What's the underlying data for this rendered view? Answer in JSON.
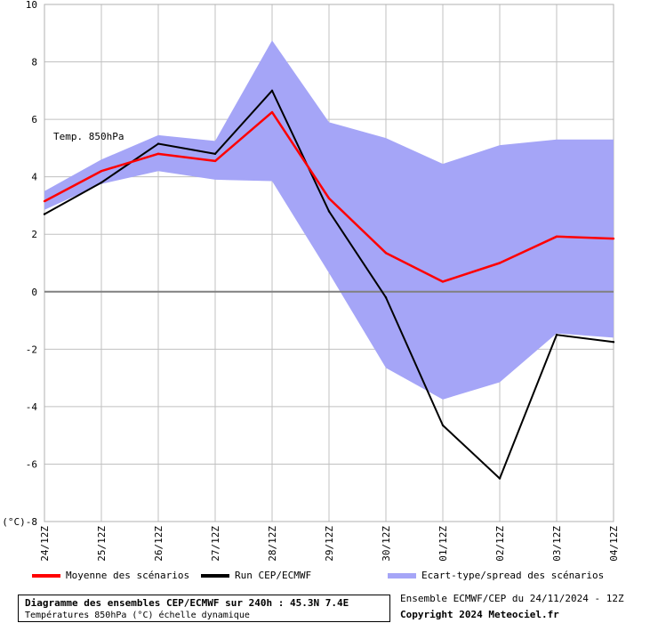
{
  "chart_data": {
    "type": "line",
    "title": "Diagramme des ensembles CEP/ECMWF sur 240h : 45.3N 7.4E",
    "subtitle": "Températures 850hPa (°C) échelle dynamique",
    "annotation": "Temp. 850hPa",
    "ylabel": "(°C)",
    "ylim": [
      -8,
      10
    ],
    "yticks": [
      10,
      8,
      6,
      4,
      2,
      0,
      -2,
      -4,
      -6,
      -8
    ],
    "ytick_labels": [
      "10",
      "8",
      "6",
      "4",
      "2",
      "0",
      "-2",
      "-4",
      "-6",
      "(°C)-8"
    ],
    "categories": [
      "24/12Z",
      "25/12Z",
      "26/12Z",
      "27/12Z",
      "28/12Z",
      "29/12Z",
      "30/12Z",
      "01/12Z",
      "02/12Z",
      "03/12Z",
      "04/12Z"
    ],
    "grid": true,
    "legend_position": "bottom",
    "series": [
      {
        "name": "Moyenne des scénarios",
        "color": "#ff0000",
        "values": [
          3.15,
          4.2,
          4.8,
          4.55,
          6.25,
          3.25,
          1.35,
          0.35,
          1.0,
          1.92,
          1.85
        ]
      },
      {
        "name": "Run CEP/ECMWF",
        "color": "#000000",
        "values": [
          2.7,
          3.8,
          5.15,
          4.8,
          7.0,
          2.8,
          -0.2,
          -4.65,
          -6.5,
          -1.5,
          -1.75
        ]
      }
    ],
    "band": {
      "name": "Ecart-type/spread des scénarios",
      "color": "#a5a5f7",
      "upper": [
        3.5,
        4.6,
        5.45,
        5.25,
        8.75,
        5.9,
        5.35,
        4.45,
        5.1,
        5.3,
        5.3
      ],
      "lower": [
        2.85,
        3.75,
        4.2,
        3.9,
        3.85,
        0.65,
        -2.65,
        -3.75,
        -3.15,
        -1.45,
        -1.6
      ]
    }
  },
  "footer": {
    "title": "Diagramme des ensembles CEP/ECMWF sur 240h : 45.3N 7.4E",
    "subtitle": "Températures 850hPa (°C) échelle dynamique",
    "run_info": "Ensemble ECMWF/CEP du 24/11/2024 - 12Z",
    "copyright": "Copyright 2024 Meteociel.fr"
  },
  "legend": {
    "mean_label": "Moyenne des scénarios",
    "run_label": "Run CEP/ECMWF",
    "spread_label": "Ecart-type/spread des scénarios"
  }
}
